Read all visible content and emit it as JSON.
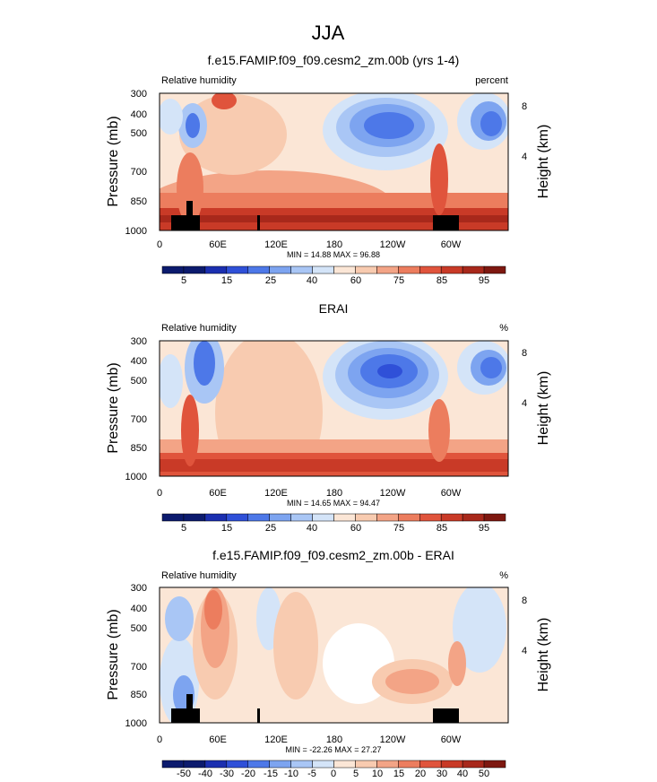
{
  "figure": {
    "title": "JJA"
  },
  "chart_data": [
    {
      "type": "heatmap",
      "title": "f.e15.FAMIP.f09_f09.cesm2_zm.00b (yrs 1-4)",
      "left_label": "Relative humidity",
      "right_label": "percent",
      "ylabel": "Pressure (mb)",
      "y2label": "Height (km)",
      "x_ticks": [
        "0",
        "60E",
        "120E",
        "180",
        "120W",
        "60W"
      ],
      "y_ticks": [
        "300",
        "400",
        "500",
        "700",
        "850",
        "1000"
      ],
      "y2_ticks": [
        "8",
        "4"
      ],
      "stats": "MIN = 14.88  MAX = 96.88",
      "colorbar_labels": [
        "5",
        "15",
        "25",
        "40",
        "60",
        "75",
        "85",
        "95"
      ]
    },
    {
      "type": "heatmap",
      "title": "ERAI",
      "left_label": "Relative humidity",
      "right_label": "%",
      "ylabel": "Pressure (mb)",
      "y2label": "Height (km)",
      "x_ticks": [
        "0",
        "60E",
        "120E",
        "180",
        "120W",
        "60W"
      ],
      "y_ticks": [
        "300",
        "400",
        "500",
        "700",
        "850",
        "1000"
      ],
      "y2_ticks": [
        "8",
        "4"
      ],
      "stats": "MIN = 14.65  MAX = 94.47",
      "colorbar_labels": [
        "5",
        "15",
        "25",
        "40",
        "60",
        "75",
        "85",
        "95"
      ]
    },
    {
      "type": "heatmap",
      "title": "f.e15.FAMIP.f09_f09.cesm2_zm.00b - ERAI",
      "left_label": "Relative humidity",
      "right_label": "%",
      "ylabel": "Pressure (mb)",
      "y2label": "Height (km)",
      "x_ticks": [
        "0",
        "60E",
        "120E",
        "180",
        "120W",
        "60W"
      ],
      "y_ticks": [
        "300",
        "400",
        "500",
        "700",
        "850",
        "1000"
      ],
      "y2_ticks": [
        "8",
        "4"
      ],
      "stats": "MIN = -22.26  MAX = 27.27",
      "colorbar_labels": [
        "-50",
        "-40",
        "-30",
        "-20",
        "-15",
        "-10",
        "-5",
        "0",
        "5",
        "10",
        "15",
        "20",
        "30",
        "40",
        "50"
      ]
    }
  ],
  "colors": {
    "palette": [
      "#0c1b6e",
      "#1b2fb0",
      "#2f50d8",
      "#4d78e8",
      "#7da4f0",
      "#a9c6f5",
      "#d4e4f8",
      "#fbe6d6",
      "#f8cbb0",
      "#f3a486",
      "#ec7d5e",
      "#e0543c",
      "#c93a27",
      "#a8281b",
      "#7e1810"
    ],
    "land": "#000000"
  }
}
